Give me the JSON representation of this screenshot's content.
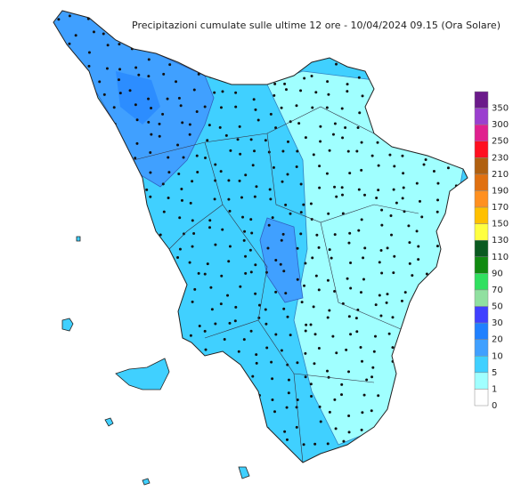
{
  "title": "Precipitazioni cumulate sulle ultime 12 ore - 10/04/2024 09.15 (Ora Solare)",
  "legend": [
    {
      "label": 350,
      "color": "#6b1a8a"
    },
    {
      "label": 300,
      "color": "#9b3fcf"
    },
    {
      "label": 250,
      "color": "#e0208f"
    },
    {
      "label": 230,
      "color": "#ff1020"
    },
    {
      "label": 210,
      "color": "#b06010"
    },
    {
      "label": 190,
      "color": "#e07010"
    },
    {
      "label": 170,
      "color": "#ff9020"
    },
    {
      "label": 150,
      "color": "#ffc000"
    },
    {
      "label": 130,
      "color": "#ffff40"
    },
    {
      "label": 110,
      "color": "#0a5a20"
    },
    {
      "label": 90,
      "color": "#108a10"
    },
    {
      "label": 70,
      "color": "#30e060"
    },
    {
      "label": 50,
      "color": "#90e0a0"
    },
    {
      "label": 30,
      "color": "#4040ff"
    },
    {
      "label": 20,
      "color": "#2080ff"
    },
    {
      "label": 10,
      "color": "#40a0ff"
    },
    {
      "label": 5,
      "color": "#40d0ff"
    },
    {
      "label": 1,
      "color": "#a0ffff"
    },
    {
      "label": 0,
      "color": "#ffffff"
    }
  ]
}
